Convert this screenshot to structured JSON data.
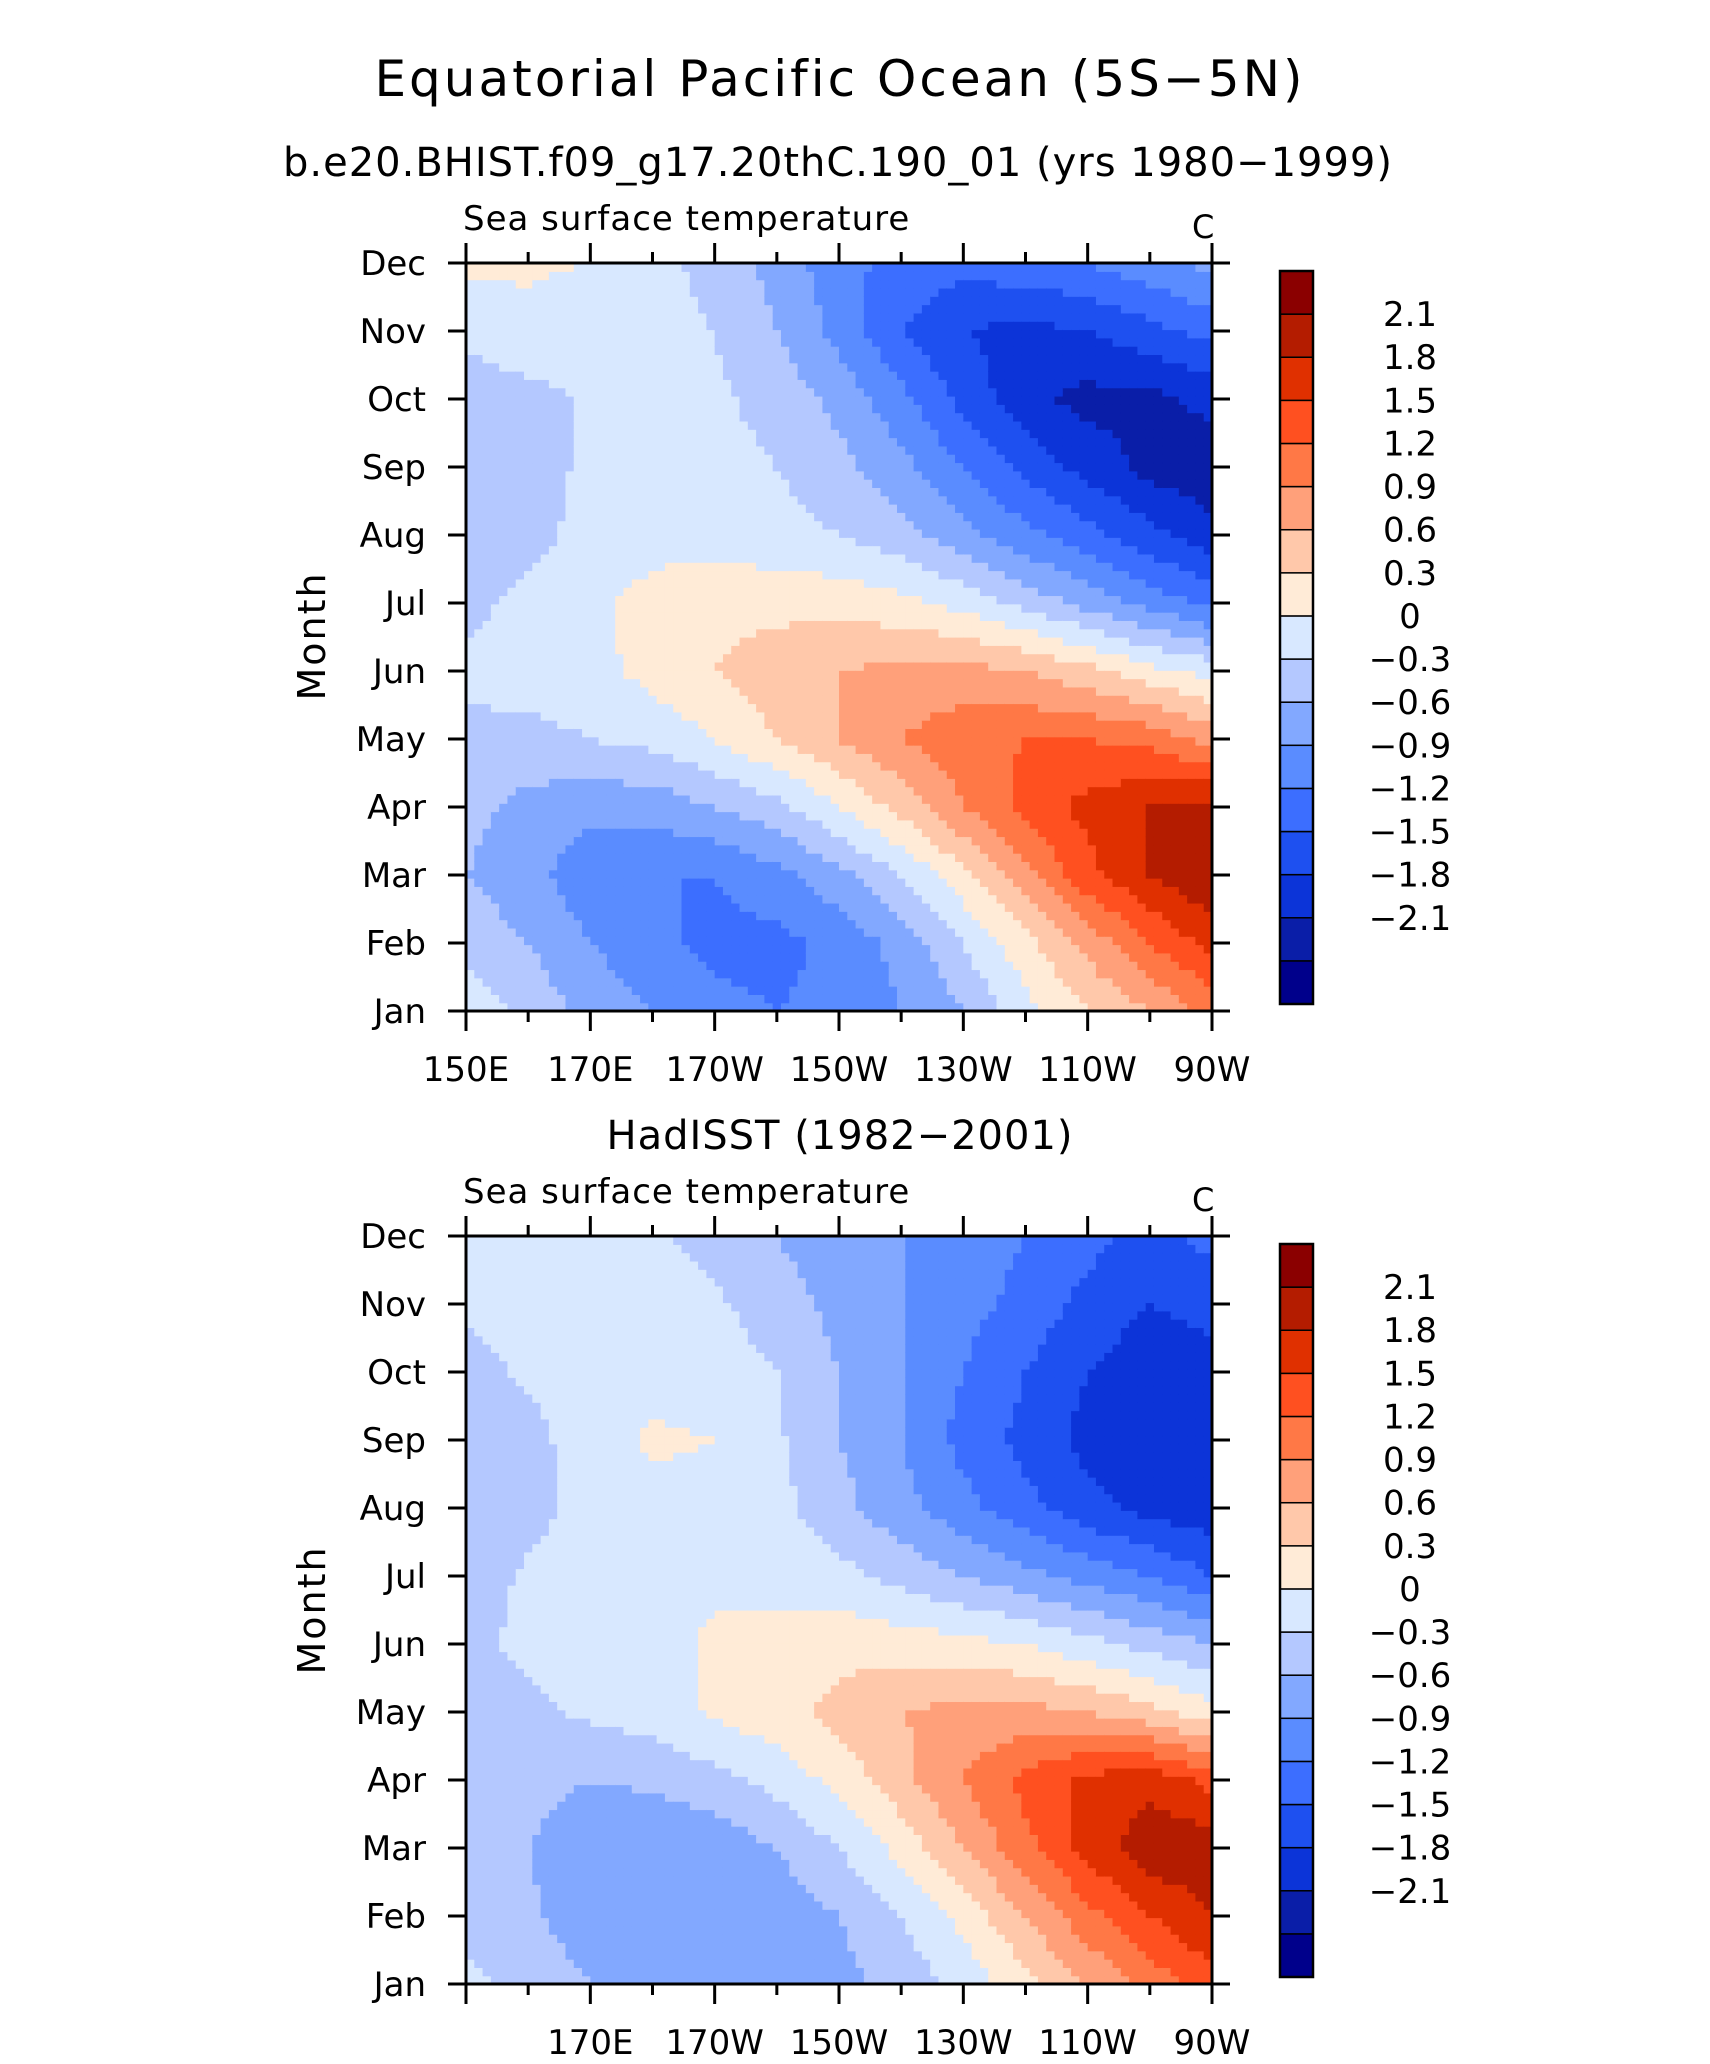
{
  "title": "Equatorial Pacific Ocean (5S−5N)",
  "chart_data": [
    {
      "type": "heatmap",
      "title": "b.e20.BHIST.f09_g17.20thC.190_01 (yrs 1980−1999)",
      "subtitle": "Sea surface temperature",
      "units": "C",
      "ylabel": "Month",
      "x_tick_labels": [
        "150E",
        "170E",
        "170W",
        "150W",
        "130W",
        "110W",
        "90W"
      ],
      "xlim": [
        150,
        270
      ],
      "y_tick_labels": [
        "Jan",
        "Feb",
        "Mar",
        "Apr",
        "May",
        "Jun",
        "Jul",
        "Aug",
        "Sep",
        "Oct",
        "Nov",
        "Dec"
      ],
      "x": [
        150,
        160,
        170,
        180,
        190,
        200,
        210,
        220,
        230,
        240,
        250,
        260,
        270
      ],
      "z": [
        [
          0.2,
          -0.1,
          -0.4,
          -0.6,
          -0.8,
          -0.9,
          -0.8,
          -0.6,
          -0.3,
          0.2,
          0.6,
          0.9,
          1.3
        ],
        [
          -0.1,
          -0.3,
          -0.6,
          -0.8,
          -1.0,
          -1.0,
          -0.8,
          -0.5,
          0.0,
          0.5,
          1.0,
          1.5,
          1.9
        ],
        [
          -0.3,
          -0.5,
          -0.8,
          -0.9,
          -0.9,
          -0.7,
          -0.4,
          0.0,
          0.5,
          1.1,
          1.7,
          2.1,
          2.4
        ],
        [
          -0.2,
          -0.4,
          -0.5,
          -0.5,
          -0.3,
          -0.1,
          0.3,
          0.7,
          1.2,
          1.6,
          1.9,
          2.1,
          2.2
        ],
        [
          -0.1,
          -0.1,
          0.0,
          0.1,
          0.3,
          0.6,
          0.9,
          1.2,
          1.4,
          1.5,
          1.5,
          1.4,
          1.1
        ],
        [
          0.1,
          0.15,
          0.2,
          0.4,
          0.6,
          0.8,
          0.9,
          1.0,
          1.0,
          0.9,
          0.7,
          0.4,
          0.2
        ],
        [
          -0.1,
          0.1,
          0.25,
          0.4,
          0.5,
          0.5,
          0.5,
          0.4,
          0.2,
          -0.1,
          -0.4,
          -0.7,
          -1.0
        ],
        [
          -0.2,
          -0.1,
          0.1,
          0.2,
          0.2,
          0.1,
          0.0,
          -0.2,
          -0.5,
          -0.8,
          -1.1,
          -1.4,
          -1.7
        ],
        [
          -0.2,
          -0.1,
          0.05,
          0.1,
          0.1,
          0.0,
          -0.2,
          -0.5,
          -0.9,
          -1.3,
          -1.6,
          -1.9,
          -2.0
        ],
        [
          -0.2,
          -0.1,
          0.05,
          0.1,
          0.05,
          -0.1,
          -0.4,
          -0.8,
          -1.3,
          -1.7,
          -1.9,
          -1.9,
          -1.7
        ],
        [
          0.1,
          0.2,
          0.1,
          0.1,
          0.0,
          -0.3,
          -0.7,
          -1.2,
          -1.5,
          -1.6,
          -1.5,
          -1.3,
          -1.1
        ],
        [
          0.35,
          0.35,
          0.3,
          0.1,
          -0.1,
          -0.4,
          -0.8,
          -1.0,
          -1.1,
          -1.0,
          -0.9,
          -0.7,
          -0.5
        ]
      ],
      "levels": [
        -2.1,
        -1.8,
        -1.5,
        -1.2,
        -0.9,
        -0.6,
        -0.3,
        0,
        0.3,
        0.6,
        0.9,
        1.2,
        1.5,
        1.8,
        2.1
      ],
      "colorbar_labels": [
        "2.1",
        "1.8",
        "1.5",
        "1.2",
        "0.9",
        "0.6",
        "0.3",
        "0",
        "−0.3",
        "−0.6",
        "−0.9",
        "−1.2",
        "−1.5",
        "−1.8",
        "−2.1"
      ]
    },
    {
      "type": "heatmap",
      "title": "HadISST (1982−2001)",
      "subtitle": "Sea surface temperature",
      "units": "C",
      "ylabel": "Month",
      "x_tick_labels": [
        "",
        "170E",
        "170W",
        "150W",
        "130W",
        "110W",
        "90W"
      ],
      "xlim": [
        150,
        270
      ],
      "y_tick_labels": [
        "Jan",
        "Feb",
        "Mar",
        "Apr",
        "May",
        "Jun",
        "Jul",
        "Aug",
        "Sep",
        "Oct",
        "Nov",
        "Dec"
      ],
      "x": [
        150,
        160,
        170,
        180,
        190,
        200,
        210,
        220,
        230,
        240,
        250,
        260,
        270
      ],
      "z": [
        [
          0.1,
          -0.15,
          -0.3,
          -0.45,
          -0.5,
          -0.5,
          -0.4,
          -0.2,
          0.1,
          0.5,
          0.9,
          1.3,
          1.7
        ],
        [
          -0.15,
          -0.25,
          -0.45,
          -0.55,
          -0.6,
          -0.5,
          -0.3,
          0.0,
          0.4,
          0.9,
          1.4,
          1.8,
          2.1
        ],
        [
          -0.2,
          -0.3,
          -0.5,
          -0.55,
          -0.5,
          -0.3,
          0.0,
          0.4,
          0.9,
          1.4,
          1.9,
          2.3,
          2.3
        ],
        [
          -0.15,
          -0.2,
          -0.3,
          -0.25,
          -0.1,
          0.1,
          0.4,
          0.8,
          1.2,
          1.6,
          1.9,
          2.0,
          1.7
        ],
        [
          -0.1,
          -0.05,
          0.05,
          0.15,
          0.35,
          0.5,
          0.7,
          0.9,
          1.0,
          1.0,
          0.9,
          0.7,
          0.4
        ],
        [
          -0.05,
          0.05,
          0.15,
          0.2,
          0.35,
          0.4,
          0.5,
          0.45,
          0.4,
          0.3,
          0.1,
          -0.1,
          -0.3
        ],
        [
          -0.15,
          0.05,
          0.15,
          0.2,
          0.25,
          0.2,
          0.1,
          -0.1,
          -0.3,
          -0.5,
          -0.7,
          -0.9,
          -1.2
        ],
        [
          -0.2,
          -0.1,
          0.1,
          0.2,
          0.2,
          0.1,
          -0.2,
          -0.5,
          -0.8,
          -1.1,
          -1.4,
          -1.6,
          -1.7
        ],
        [
          -0.2,
          -0.1,
          0.15,
          0.35,
          0.3,
          0.05,
          -0.3,
          -0.6,
          -1.0,
          -1.3,
          -1.6,
          -1.8,
          -1.8
        ],
        [
          -0.1,
          0.05,
          0.15,
          0.2,
          0.15,
          0.0,
          -0.3,
          -0.6,
          -0.9,
          -1.2,
          -1.5,
          -1.7,
          -1.6
        ],
        [
          0.05,
          0.1,
          0.15,
          0.15,
          0.05,
          -0.15,
          -0.4,
          -0.6,
          -0.8,
          -1.0,
          -1.3,
          -1.5,
          -1.4
        ],
        [
          0.1,
          0.1,
          0.1,
          0.05,
          -0.1,
          -0.3,
          -0.5,
          -0.6,
          -0.7,
          -0.9,
          -1.1,
          -1.3,
          -1.1
        ]
      ],
      "levels": [
        -2.1,
        -1.8,
        -1.5,
        -1.2,
        -0.9,
        -0.6,
        -0.3,
        0,
        0.3,
        0.6,
        0.9,
        1.2,
        1.5,
        1.8,
        2.1
      ],
      "colorbar_labels": [
        "2.1",
        "1.8",
        "1.5",
        "1.2",
        "0.9",
        "0.6",
        "0.3",
        "0",
        "−0.3",
        "−0.6",
        "−0.9",
        "−1.2",
        "−1.5",
        "−1.8",
        "−2.1"
      ]
    }
  ],
  "colors": [
    "#00008b",
    "#0a1ea8",
    "#0c34d8",
    "#1e50f0",
    "#3c6eff",
    "#5a8cff",
    "#82a8ff",
    "#b4c8ff",
    "#d8e8ff",
    "#ffebd7",
    "#ffc8aa",
    "#ffa07a",
    "#ff7846",
    "#ff5020",
    "#e03000",
    "#b41c00",
    "#8b0000"
  ]
}
